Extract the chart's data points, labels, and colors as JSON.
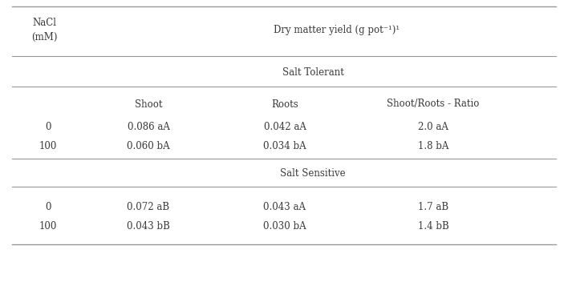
{
  "header_nacl_line1": "NaCl",
  "header_nacl_line2": "(mM)",
  "header_dry": "Dry matter yield (g pot⁻¹)¹",
  "col_headers": [
    "Shoot",
    "Roots",
    "Shoot/Roots - Ratio"
  ],
  "section1_label": "Salt Tolerant",
  "section2_label": "Salt Sensitive",
  "rows_st": [
    [
      "0",
      "0.086 aA",
      "0.042 aA",
      "2.0 aA"
    ],
    [
      "100",
      "0.060 bA",
      "0.034 bA",
      "1.8 bA"
    ]
  ],
  "rows_ss": [
    [
      "0",
      "0.072 aB",
      "0.043 aA",
      "1.7 aB"
    ],
    [
      "100",
      "0.043 bB",
      "0.030 bA",
      "1.4 bB"
    ]
  ],
  "text_color": "#3a3a3a",
  "line_color": "#999999",
  "bg_color": "#ffffff",
  "font_size": 8.5
}
